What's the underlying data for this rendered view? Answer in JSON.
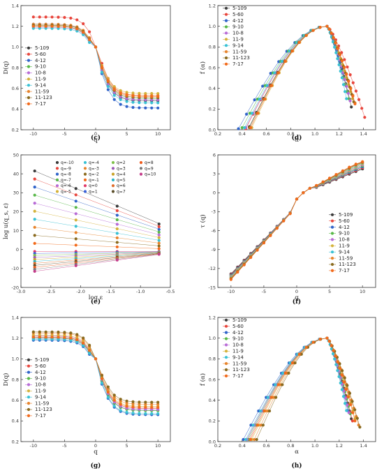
{
  "palette": {
    "5-109": "#3a3a3a",
    "5-60": "#e8453c",
    "4-12": "#2f63c9",
    "9-10": "#57b847",
    "10-8": "#b86bd6",
    "11-9": "#d4b23a",
    "9-14": "#39c1d4",
    "11-59": "#e7842c",
    "11-123": "#8a6a1e",
    "7-17": "#f26a1b"
  },
  "q_palette": [
    "#3a3a3a",
    "#e8453c",
    "#2f63c9",
    "#57b847",
    "#b86bd6",
    "#d4b23a",
    "#39c1d4",
    "#e7842c",
    "#8a6a1e",
    "#f26a1b",
    "#e03a6a",
    "#3a60d8",
    "#7fc24a",
    "#9b59b6",
    "#c9a227",
    "#2bb5c8",
    "#e06c2a",
    "#5c4f2a",
    "#ef5c1e",
    "#777777",
    "#c43c8a"
  ],
  "chart_data": [
    {
      "id": "c",
      "type": "scatter",
      "label": "(c)",
      "xlabel": "q",
      "ylabel": "D(q)",
      "xlim": [
        -12,
        12
      ],
      "ylim": [
        0.2,
        1.4
      ],
      "xticks": [
        -10,
        -5,
        0,
        5,
        10
      ],
      "yticks": [
        0.2,
        0.4,
        0.6,
        0.8,
        1.0,
        1.2,
        1.4
      ],
      "tick_labels_x": [
        "-10",
        "-5",
        "0",
        "5",
        "10"
      ],
      "tick_labels_y": [
        "0.2",
        "0.4",
        "0.6",
        "0.8",
        "1.0",
        "1.2",
        "1.4"
      ],
      "legend": [
        "5-109",
        "5-60",
        "4-12",
        "9-10",
        "10-8",
        "11-9",
        "9-14",
        "11-59",
        "11-123",
        "7-17"
      ],
      "legend_position": "left",
      "series_kind": "dq",
      "series": [
        {
          "name": "5-109",
          "start": 1.2,
          "end": 0.48
        },
        {
          "name": "5-60",
          "start": 1.29,
          "end": 0.53
        },
        {
          "name": "4-12",
          "start": 1.22,
          "end": 0.41
        },
        {
          "name": "9-10",
          "start": 1.2,
          "end": 0.5
        },
        {
          "name": "10-8",
          "start": 1.19,
          "end": 0.49
        },
        {
          "name": "11-9",
          "start": 1.21,
          "end": 0.55
        },
        {
          "name": "9-14",
          "start": 1.18,
          "end": 0.46
        },
        {
          "name": "11-59",
          "start": 1.22,
          "end": 0.53
        },
        {
          "name": "11-123",
          "start": 1.21,
          "end": 0.51
        },
        {
          "name": "7-17",
          "start": 1.2,
          "end": 0.52
        }
      ]
    },
    {
      "id": "d",
      "type": "scatter",
      "label": "(d)",
      "xlabel": "α",
      "ylabel": "f (α)",
      "xlim": [
        0.2,
        1.5
      ],
      "ylim": [
        0.0,
        1.2
      ],
      "xticks": [
        0.2,
        0.4,
        0.6,
        0.8,
        1.0,
        1.2,
        1.4
      ],
      "yticks": [
        0.0,
        0.2,
        0.4,
        0.6,
        0.8,
        1.0,
        1.2
      ],
      "tick_labels_x": [
        "0.2",
        "0.4",
        "0.6",
        "0.8",
        "1.0",
        "1.2",
        "1.4"
      ],
      "tick_labels_y": [
        "0.0",
        "0.2",
        "0.4",
        "0.6",
        "0.8",
        "1.0",
        "1.2"
      ],
      "legend": [
        "5-109",
        "5-60",
        "4-12",
        "9-10",
        "10-8",
        "11-9",
        "9-14",
        "11-59",
        "11-123",
        "7-17"
      ],
      "legend_position": "top-left",
      "series_kind": "falpha",
      "series": [
        {
          "name": "5-109",
          "amin": 0.46,
          "amax": 1.3,
          "fmin": 0.03,
          "fright": 0.22
        },
        {
          "name": "5-60",
          "amin": 0.43,
          "amax": 1.41,
          "fmin": 0.01,
          "fright": 0.12
        },
        {
          "name": "4-12",
          "amin": 0.37,
          "amax": 1.27,
          "fmin": 0.01,
          "fright": 0.36
        },
        {
          "name": "9-10",
          "amin": 0.4,
          "amax": 1.28,
          "fmin": 0.02,
          "fright": 0.3
        },
        {
          "name": "10-8",
          "amin": 0.43,
          "amax": 1.29,
          "fmin": 0.02,
          "fright": 0.28
        },
        {
          "name": "11-9",
          "amin": 0.48,
          "amax": 1.31,
          "fmin": 0.02,
          "fright": 0.3
        },
        {
          "name": "9-14",
          "amin": 0.42,
          "amax": 1.26,
          "fmin": 0.02,
          "fright": 0.3
        },
        {
          "name": "11-59",
          "amin": 0.47,
          "amax": 1.33,
          "fmin": 0.02,
          "fright": 0.26
        },
        {
          "name": "11-123",
          "amin": 0.46,
          "amax": 1.32,
          "fmin": 0.02,
          "fright": 0.27
        },
        {
          "name": "7-17",
          "amin": 0.47,
          "amax": 1.33,
          "fmin": 0.02,
          "fright": 0.25
        }
      ]
    },
    {
      "id": "e",
      "type": "scatter",
      "label": "(e)",
      "xlabel": "log ε",
      "ylabel": "log u(q_s, ε)",
      "xlim": [
        -3.0,
        -0.5
      ],
      "ylim": [
        -20,
        50
      ],
      "xticks": [
        -3.0,
        -2.5,
        -2.0,
        -1.5,
        -1.0,
        -0.5
      ],
      "yticks": [
        -20,
        -10,
        0,
        10,
        20,
        30,
        40,
        50
      ],
      "tick_labels_x": [
        "-3.0",
        "-2.5",
        "-2.0",
        "-1.5",
        "-1.0",
        "-0.5"
      ],
      "tick_labels_y": [
        "-20",
        "-10",
        "0",
        "10",
        "20",
        "30",
        "40",
        "50"
      ],
      "x": [
        -2.77,
        -2.08,
        -1.39,
        -0.69
      ],
      "legend": [
        "q=-10",
        "q=-9",
        "q=-8",
        "q=-7",
        "q=-6",
        "q=-5",
        "q=-4",
        "q=-3",
        "q=-2",
        "q=-1",
        "q=0",
        "q=1",
        "q=2",
        "q=3",
        "q=4",
        "q=5",
        "q=6",
        "q=7",
        "q=8",
        "q=9",
        "q=10"
      ],
      "legend_position": "top-right",
      "series_kind": "loglog",
      "first_value_q_minus10": 41.5,
      "last_value_q_minus10": 13.5,
      "first_value_q10": -11.5,
      "last_value_q10": -2.5,
      "value_at_q0": -1.0
    },
    {
      "id": "f",
      "type": "line",
      "label": "(f)",
      "xlabel": "q",
      "ylabel": "τ (q)",
      "xlim": [
        -12,
        12
      ],
      "ylim": [
        -15,
        6
      ],
      "xticks": [
        -10,
        -5,
        0,
        5,
        10
      ],
      "yticks": [
        -15,
        -12,
        -9,
        -6,
        -3,
        0,
        3,
        6
      ],
      "tick_labels_x": [
        "-10",
        "-5",
        "0",
        "5",
        "10"
      ],
      "tick_labels_y": [
        "-15",
        "-12",
        "-9",
        "-6",
        "-3",
        "0",
        "3",
        "6"
      ],
      "legend": [
        "5-109",
        "5-60",
        "4-12",
        "9-10",
        "10-8",
        "11-9",
        "9-14",
        "11-59",
        "11-123",
        "7-17"
      ],
      "legend_position": "right",
      "series_kind": "tau",
      "tau_at_q_minus10": -13.3,
      "tau_at_q10": 4.5
    },
    {
      "id": "g",
      "type": "scatter",
      "label": "(g)",
      "xlabel": "q",
      "ylabel": "D(q)",
      "xlim": [
        -12,
        12
      ],
      "ylim": [
        0.2,
        1.4
      ],
      "xticks": [
        -10,
        -5,
        0,
        5,
        10
      ],
      "yticks": [
        0.2,
        0.4,
        0.6,
        0.8,
        1.0,
        1.2,
        1.4
      ],
      "tick_labels_x": [
        "-10",
        "-5",
        "0",
        "5",
        "10"
      ],
      "tick_labels_y": [
        "0.2",
        "0.4",
        "0.6",
        "0.8",
        "1.0",
        "1.2",
        "1.4"
      ],
      "legend": [
        "5-109",
        "5-60",
        "4-12",
        "9-10",
        "10-8",
        "11-9",
        "9-14",
        "11-59",
        "11-123",
        "7-17"
      ],
      "legend_position": "left",
      "series_kind": "dq",
      "series": [
        {
          "name": "5-109",
          "start": 1.2,
          "end": 0.5
        },
        {
          "name": "5-60",
          "start": 1.22,
          "end": 0.52
        },
        {
          "name": "4-12",
          "start": 1.18,
          "end": 0.46
        },
        {
          "name": "9-10",
          "start": 1.21,
          "end": 0.5
        },
        {
          "name": "10-8",
          "start": 1.22,
          "end": 0.51
        },
        {
          "name": "11-9",
          "start": 1.23,
          "end": 0.54
        },
        {
          "name": "9-14",
          "start": 1.19,
          "end": 0.47
        },
        {
          "name": "11-59",
          "start": 1.25,
          "end": 0.56
        },
        {
          "name": "11-123",
          "start": 1.26,
          "end": 0.58
        },
        {
          "name": "7-17",
          "start": 1.21,
          "end": 0.53
        }
      ]
    },
    {
      "id": "h",
      "type": "scatter",
      "label": "(h)",
      "xlabel": "α",
      "ylabel": "f (α)",
      "xlim": [
        0.2,
        1.5
      ],
      "ylim": [
        0.0,
        1.2
      ],
      "xticks": [
        0.2,
        0.4,
        0.6,
        0.8,
        1.0,
        1.2,
        1.4
      ],
      "yticks": [
        0.0,
        0.2,
        0.4,
        0.6,
        0.8,
        1.0,
        1.2
      ],
      "tick_labels_x": [
        "0.2",
        "0.4",
        "0.6",
        "0.8",
        "1.0",
        "1.2",
        "1.4"
      ],
      "tick_labels_y": [
        "0.0",
        "0.2",
        "0.4",
        "0.6",
        "0.8",
        "1.0",
        "1.2"
      ],
      "legend": [
        "5-109",
        "5-60",
        "4-12",
        "9-10",
        "10-8",
        "11-9",
        "9-14",
        "11-59",
        "11-123",
        "7-17"
      ],
      "legend_position": "top-left",
      "series_kind": "falpha",
      "series": [
        {
          "name": "5-109",
          "amin": 0.44,
          "amax": 1.3,
          "fmin": 0.02,
          "fright": 0.22
        },
        {
          "name": "5-60",
          "amin": 0.46,
          "amax": 1.31,
          "fmin": 0.02,
          "fright": 0.2
        },
        {
          "name": "4-12",
          "amin": 0.41,
          "amax": 1.27,
          "fmin": 0.02,
          "fright": 0.3
        },
        {
          "name": "9-10",
          "amin": 0.45,
          "amax": 1.29,
          "fmin": 0.02,
          "fright": 0.27
        },
        {
          "name": "10-8",
          "amin": 0.44,
          "amax": 1.28,
          "fmin": 0.02,
          "fright": 0.28
        },
        {
          "name": "11-9",
          "amin": 0.48,
          "amax": 1.33,
          "fmin": 0.02,
          "fright": 0.22
        },
        {
          "name": "9-14",
          "amin": 0.43,
          "amax": 1.26,
          "fmin": 0.02,
          "fright": 0.3
        },
        {
          "name": "11-59",
          "amin": 0.5,
          "amax": 1.36,
          "fmin": 0.02,
          "fright": 0.16
        },
        {
          "name": "11-123",
          "amin": 0.52,
          "amax": 1.37,
          "fmin": 0.02,
          "fright": 0.14
        },
        {
          "name": "7-17",
          "amin": 0.47,
          "amax": 1.33,
          "fmin": 0.02,
          "fright": 0.2
        }
      ]
    }
  ]
}
